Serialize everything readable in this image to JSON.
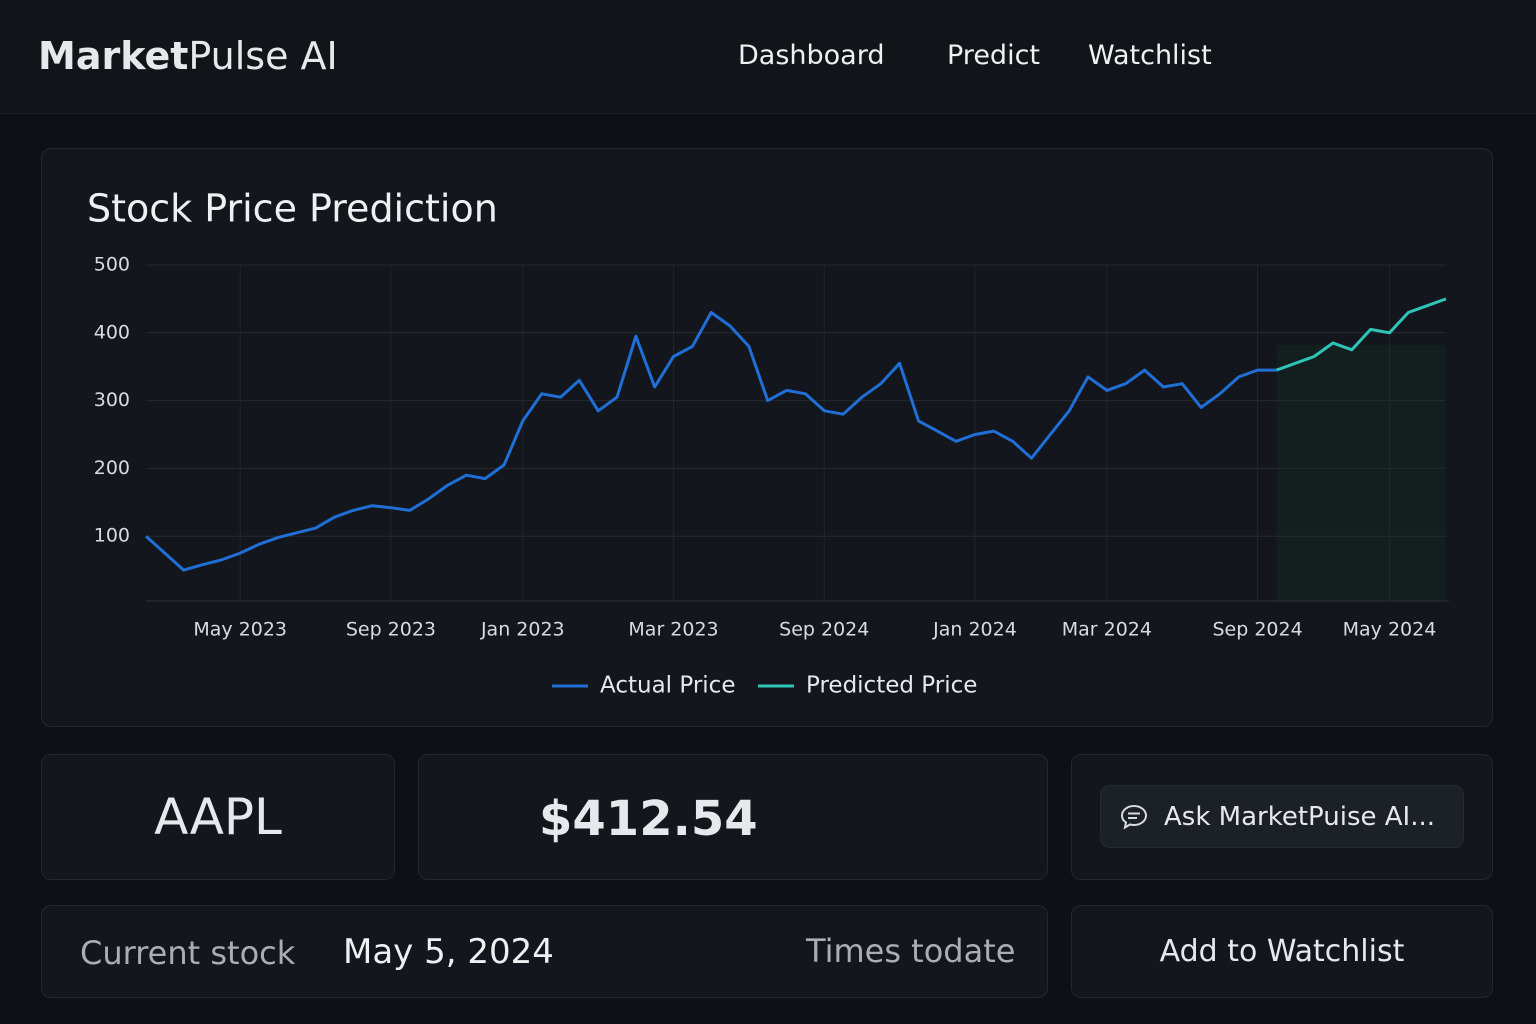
{
  "header": {
    "brand": {
      "bold": "Market",
      "rest": "Pulse AI"
    },
    "nav": [
      "Dashboard",
      "Predict",
      "Watchlist"
    ]
  },
  "chart_data": {
    "type": "line",
    "title": "Stock Price Prediction",
    "categories": [
      null,
      null,
      null,
      null,
      null,
      "May 2023",
      null,
      null,
      null,
      null,
      null,
      null,
      null,
      "Sep 2023",
      null,
      null,
      null,
      null,
      null,
      null,
      "Jan 2023",
      null,
      null,
      null,
      null,
      null,
      null,
      null,
      "Mar 2023",
      null,
      null,
      null,
      null,
      null,
      null,
      null,
      "Sep 2024",
      null,
      null,
      null,
      null,
      null,
      null,
      null,
      "Jan 2024",
      null,
      null,
      null,
      null,
      null,
      null,
      "Mar 2024",
      null,
      null,
      null,
      null,
      null,
      null,
      null,
      "Sep 2024",
      null,
      null,
      null,
      null,
      null,
      null,
      "May 2024",
      null,
      null,
      null
    ],
    "series": [
      {
        "name": "Actual Price",
        "color": "#1f6fd6",
        "values": [
          100,
          75,
          50,
          58,
          65,
          75,
          88,
          98,
          105,
          112,
          128,
          138,
          145,
          142,
          138,
          155,
          175,
          190,
          185,
          205,
          270,
          310,
          305,
          330,
          285,
          305,
          395,
          320,
          365,
          380,
          430,
          410,
          380,
          300,
          315,
          310,
          285,
          280,
          305,
          325,
          355,
          270,
          255,
          240,
          250,
          255,
          240,
          215,
          250,
          285,
          335,
          315,
          325,
          345,
          320,
          325,
          290,
          310,
          335,
          345,
          345,
          null,
          null,
          null,
          null,
          null,
          null,
          null,
          null,
          null
        ]
      },
      {
        "name": "Predicted Price",
        "color": "#2ec4b6",
        "values": [
          null,
          null,
          null,
          null,
          null,
          null,
          null,
          null,
          null,
          null,
          null,
          null,
          null,
          null,
          null,
          null,
          null,
          null,
          null,
          null,
          null,
          null,
          null,
          null,
          null,
          null,
          null,
          null,
          null,
          null,
          null,
          null,
          null,
          null,
          null,
          null,
          null,
          null,
          null,
          null,
          null,
          null,
          null,
          null,
          null,
          null,
          null,
          null,
          null,
          null,
          null,
          null,
          null,
          null,
          null,
          null,
          null,
          null,
          null,
          null,
          345,
          355,
          365,
          385,
          375,
          405,
          400,
          430,
          440,
          450
        ]
      }
    ],
    "ylim": [
      0,
      500
    ],
    "yticks": [
      100,
      200,
      300,
      400,
      500
    ],
    "grid": true
  },
  "ticker": "AAPL",
  "price": "$412.54",
  "ask": "Ask MarketPuise AI...",
  "info": {
    "label": "Current stock",
    "date": "May 5, 2024",
    "note": "Times todate"
  },
  "button": "Add to Watchlist"
}
